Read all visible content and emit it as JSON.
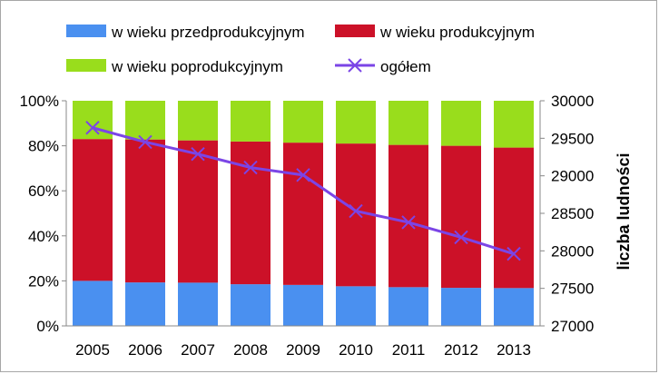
{
  "chart_data": {
    "type": "bar",
    "stacked": "percent",
    "categories": [
      "2005",
      "2006",
      "2007",
      "2008",
      "2009",
      "2010",
      "2011",
      "2012",
      "2013"
    ],
    "series": [
      {
        "name": "w wieku przedprodukcyjnym",
        "kind": "bar",
        "color": "#4a90f0",
        "values": [
          20,
          19.3,
          19.2,
          18.5,
          18.2,
          17.6,
          17.2,
          16.9,
          16.8
        ]
      },
      {
        "name": "w wieku produkcyjnym",
        "kind": "bar",
        "color": "#cc1128",
        "values": [
          63,
          63.5,
          63.2,
          63.4,
          63.2,
          63.4,
          63.2,
          63.1,
          62.4
        ]
      },
      {
        "name": "w wieku poprodukcyjnym",
        "kind": "bar",
        "color": "#99dd1c",
        "values": [
          17,
          17.2,
          17.6,
          18.1,
          18.6,
          19,
          19.6,
          20,
          20.8
        ]
      },
      {
        "name": "ogółem",
        "kind": "line",
        "axis": "right",
        "color": "#7b45e6",
        "values": [
          29640,
          29450,
          29290,
          29110,
          29010,
          28530,
          28380,
          28180,
          27960
        ]
      }
    ],
    "y_left": {
      "ylim": [
        0,
        100
      ],
      "ticks": [
        "0%",
        "20%",
        "40%",
        "60%",
        "80%",
        "100%"
      ]
    },
    "y_right": {
      "ylim": [
        27000,
        30000
      ],
      "label": "liczba ludności",
      "ticks": [
        "27000",
        "27500",
        "28000",
        "28500",
        "29000",
        "29500",
        "30000"
      ]
    },
    "grid": false,
    "legend_position": "top"
  }
}
